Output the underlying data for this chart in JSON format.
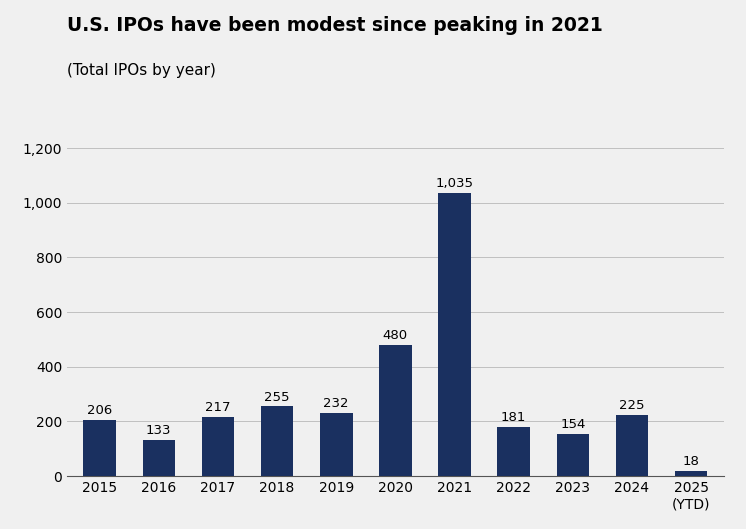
{
  "title": "U.S. IPOs have been modest since peaking in 2021",
  "subtitle": "(Total IPOs by year)",
  "years": [
    "2015",
    "2016",
    "2017",
    "2018",
    "2019",
    "2020",
    "2021",
    "2022",
    "2023",
    "2024",
    "2025\n(YTD)"
  ],
  "values": [
    206,
    133,
    217,
    255,
    232,
    480,
    1035,
    181,
    154,
    225,
    18
  ],
  "bar_color": "#1a3060",
  "background_color": "#f0f0f0",
  "ylim": [
    0,
    1200
  ],
  "yticks": [
    0,
    200,
    400,
    600,
    800,
    1000,
    1200
  ],
  "title_fontsize": 13.5,
  "subtitle_fontsize": 11,
  "label_fontsize": 9.5,
  "tick_fontsize": 10
}
